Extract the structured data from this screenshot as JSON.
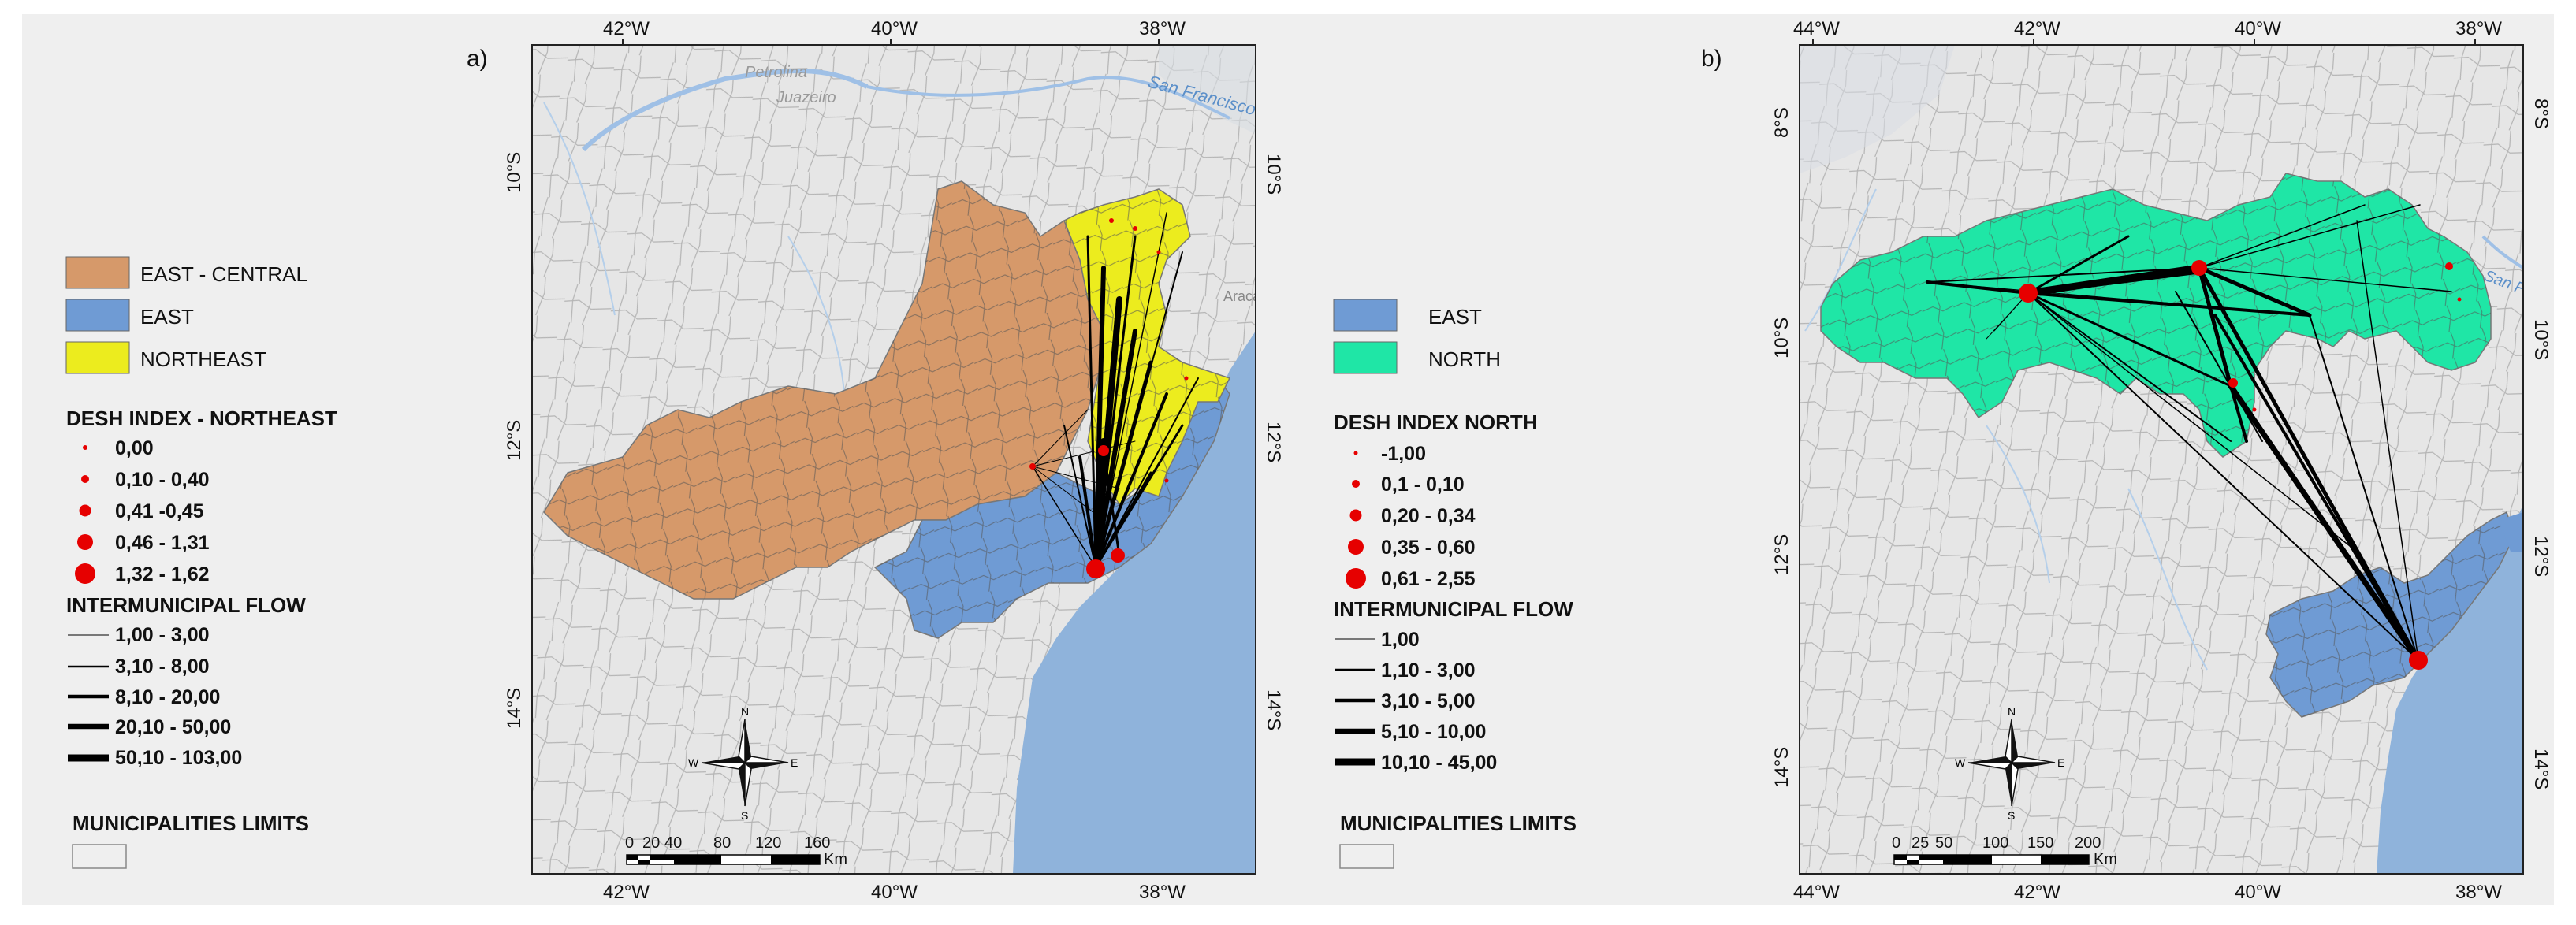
{
  "panel_a": {
    "label": "a)",
    "ticks_top": [
      "42°W",
      "40°W",
      "38°W"
    ],
    "ticks_bottom": [
      "42°W",
      "40°W",
      "38°W"
    ],
    "ticks_left": [
      "10°S",
      "12°S",
      "14°S"
    ],
    "ticks_right": [
      "10°S",
      "12°S",
      "14°S"
    ],
    "place_names": [
      "Petrolina",
      "Juazeiro",
      "San Francisco",
      "Aracaju"
    ],
    "scale": {
      "values": [
        "0",
        "20",
        "40",
        "80",
        "120",
        "160"
      ],
      "unit": "Km"
    },
    "north_arrow": {
      "n": "N",
      "s": "S",
      "e": "E",
      "w": "W"
    },
    "legend": {
      "regions": [
        {
          "label": "EAST - CENTRAL",
          "color": "#d6996a"
        },
        {
          "label": "EAST",
          "color": "#6f9bd4"
        },
        {
          "label": "NORTHEAST",
          "color": "#ecec1e"
        }
      ],
      "index_title": "DESH INDEX - NORTHEAST",
      "index_classes": [
        "0,00",
        "0,10 - 0,40",
        "0,41 -0,45",
        "0,46 - 1,31",
        "1,32 - 1,62"
      ],
      "flow_title": "INTERMUNICIPAL FLOW",
      "flow_classes": [
        "1,00 - 3,00",
        "3,10 - 8,00",
        "8,10 - 20,00",
        "20,10 - 50,00",
        "50,10 - 103,00"
      ],
      "limits_title": "MUNICIPALITIES LIMITS"
    }
  },
  "panel_b": {
    "label": "b)",
    "ticks_top": [
      "44°W",
      "42°W",
      "40°W",
      "38°W"
    ],
    "ticks_bottom": [
      "44°W",
      "42°W",
      "40°W",
      "38°W"
    ],
    "ticks_left": [
      "8°S",
      "10°S",
      "12°S",
      "14°S"
    ],
    "ticks_right": [
      "8°S",
      "10°S",
      "12°S",
      "14°S"
    ],
    "place_names": [
      "San Francisco"
    ],
    "scale": {
      "values": [
        "0",
        "25",
        "50",
        "100",
        "150",
        "200"
      ],
      "unit": "Km"
    },
    "north_arrow": {
      "n": "N",
      "s": "S",
      "e": "E",
      "w": "W"
    },
    "legend": {
      "regions": [
        {
          "label": "EAST",
          "color": "#6f9bd4"
        },
        {
          "label": "NORTH",
          "color": "#1fe6a6"
        }
      ],
      "index_title": "DESH INDEX NORTH",
      "index_classes": [
        "-1,00",
        "0,1 - 0,10",
        "0,20 - 0,34",
        "0,35 - 0,60",
        "0,61 - 2,55"
      ],
      "flow_title": "INTERMUNICIPAL FLOW",
      "flow_classes": [
        "1,00",
        "1,10 - 3,00",
        "3,10 - 5,00",
        "5,10 - 10,00",
        "10,10 - 45,00"
      ],
      "limits_title": "MUNICIPALITIES LIMITS"
    }
  },
  "colors": {
    "background": "#efefef",
    "land": "#e6e6e6",
    "ocean": "#8fb3db",
    "river": "#9fc0e6",
    "boundary": "#7a7a7a",
    "flow": "#000000",
    "node": "#e60000"
  }
}
